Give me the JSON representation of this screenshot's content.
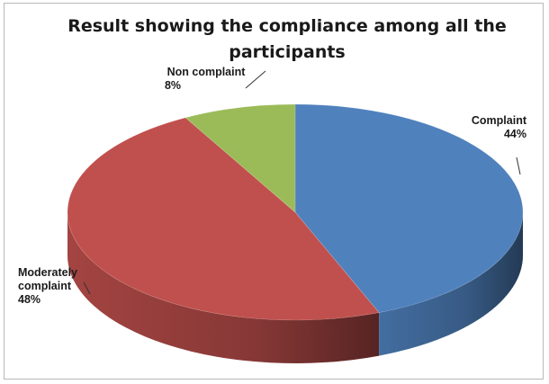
{
  "chart_data": {
    "type": "pie",
    "title": "Result showing the compliance among all the participants",
    "title_lines": [
      "Result showing the compliance among all the",
      "participants"
    ],
    "slices": [
      {
        "label": "Complaint",
        "label_lines": [
          "Complaint"
        ],
        "value": 44,
        "value_label": "44%",
        "color": "#4f81bd"
      },
      {
        "label": "Moderately complaint",
        "label_lines": [
          "Moderately",
          "complaint"
        ],
        "value": 48,
        "value_label": "48%",
        "color": "#c0504d"
      },
      {
        "label": "Non complaint",
        "label_lines": [
          "Non complaint"
        ],
        "value": 8,
        "value_label": "8%",
        "color": "#9bbb59"
      }
    ],
    "legend": "none",
    "style": "3d-pie"
  }
}
